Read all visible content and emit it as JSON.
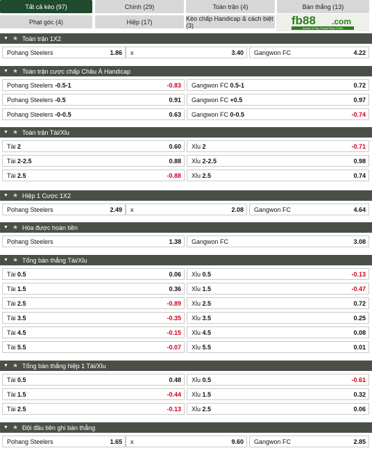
{
  "tabs": [
    {
      "label": "Tất cả kèo (97)",
      "active": true
    },
    {
      "label": "Chính (29)",
      "active": false
    },
    {
      "label": "Toàn trận (4)",
      "active": false
    },
    {
      "label": "Bàn thắng (13)",
      "active": false
    },
    {
      "label": "Phạt góc (4)",
      "active": false
    },
    {
      "label": "Hiệp (17)",
      "active": false
    },
    {
      "label": "Kèo chấp Handicap & cách biệt (3)",
      "active": false
    }
  ],
  "logo": {
    "brand": "fb88",
    "domain": ".com",
    "tagline": "Games To Play Trusted Place To Bet"
  },
  "sections": [
    {
      "title": "Toàn trận 1X2",
      "layout": "three",
      "rows": [
        [
          {
            "name": "Pohang Steelers",
            "line": "",
            "odd": "1.86"
          },
          {
            "name": "x",
            "line": "",
            "odd": "3.40"
          },
          {
            "name": "Gangwon FC",
            "line": "",
            "odd": "4.22"
          }
        ]
      ]
    },
    {
      "title": "Toàn trận cược chấp Châu Á Handicap",
      "layout": "two",
      "rows": [
        [
          {
            "name": "Pohang Steelers",
            "line": "-0.5-1",
            "odd": "-0.83"
          },
          {
            "name": "Gangwon FC",
            "line": "0.5-1",
            "odd": "0.72"
          }
        ],
        [
          {
            "name": "Pohang Steelers",
            "line": "-0.5",
            "odd": "0.91"
          },
          {
            "name": "Gangwon FC",
            "line": "+0.5",
            "odd": "0.97"
          }
        ],
        [
          {
            "name": "Pohang Steelers",
            "line": "-0-0.5",
            "odd": "0.63"
          },
          {
            "name": "Gangwon FC",
            "line": "0-0.5",
            "odd": "-0.74"
          }
        ]
      ]
    },
    {
      "title": "Toàn trận Tài/Xỉu",
      "layout": "two",
      "rows": [
        [
          {
            "name": "Tài",
            "line": "2",
            "odd": "0.60"
          },
          {
            "name": "Xỉu",
            "line": "2",
            "odd": "-0.71"
          }
        ],
        [
          {
            "name": "Tài",
            "line": "2-2.5",
            "odd": "0.88"
          },
          {
            "name": "Xỉu",
            "line": "2-2.5",
            "odd": "0.98"
          }
        ],
        [
          {
            "name": "Tài",
            "line": "2.5",
            "odd": "-0.88"
          },
          {
            "name": "Xỉu",
            "line": "2.5",
            "odd": "0.74"
          }
        ]
      ]
    },
    {
      "title": "Hiệp 1 Cược 1X2",
      "layout": "three",
      "rows": [
        [
          {
            "name": "Pohang Steelers",
            "line": "",
            "odd": "2.49"
          },
          {
            "name": "x",
            "line": "",
            "odd": "2.08"
          },
          {
            "name": "Gangwon FC",
            "line": "",
            "odd": "4.64"
          }
        ]
      ]
    },
    {
      "title": "Hòa được hoàn tiền",
      "layout": "two",
      "rows": [
        [
          {
            "name": "Pohang Steelers",
            "line": "",
            "odd": "1.38"
          },
          {
            "name": "Gangwon FC",
            "line": "",
            "odd": "3.08"
          }
        ]
      ]
    },
    {
      "title": "Tổng bàn thắng Tài/Xỉu",
      "layout": "two",
      "rows": [
        [
          {
            "name": "Tài",
            "line": "0.5",
            "odd": "0.06"
          },
          {
            "name": "Xỉu",
            "line": "0.5",
            "odd": "-0.13"
          }
        ],
        [
          {
            "name": "Tài",
            "line": "1.5",
            "odd": "0.36"
          },
          {
            "name": "Xỉu",
            "line": "1.5",
            "odd": "-0.47"
          }
        ],
        [
          {
            "name": "Tài",
            "line": "2.5",
            "odd": "-0.89"
          },
          {
            "name": "Xỉu",
            "line": "2.5",
            "odd": "0.72"
          }
        ],
        [
          {
            "name": "Tài",
            "line": "3.5",
            "odd": "-0.35"
          },
          {
            "name": "Xỉu",
            "line": "3.5",
            "odd": "0.25"
          }
        ],
        [
          {
            "name": "Tài",
            "line": "4.5",
            "odd": "-0.15"
          },
          {
            "name": "Xỉu",
            "line": "4.5",
            "odd": "0.08"
          }
        ],
        [
          {
            "name": "Tài",
            "line": "5.5",
            "odd": "-0.07"
          },
          {
            "name": "Xỉu",
            "line": "5.5",
            "odd": "0.01"
          }
        ]
      ]
    },
    {
      "title": "Tổng bàn thắng hiệp 1 Tài/Xỉu",
      "layout": "two",
      "rows": [
        [
          {
            "name": "Tài",
            "line": "0.5",
            "odd": "0.48"
          },
          {
            "name": "Xỉu",
            "line": "0.5",
            "odd": "-0.61"
          }
        ],
        [
          {
            "name": "Tài",
            "line": "1.5",
            "odd": "-0.44"
          },
          {
            "name": "Xỉu",
            "line": "1.5",
            "odd": "0.32"
          }
        ],
        [
          {
            "name": "Tài",
            "line": "2.5",
            "odd": "-0.13"
          },
          {
            "name": "Xỉu",
            "line": "2.5",
            "odd": "0.06"
          }
        ]
      ]
    },
    {
      "title": "Đội đầu tiên ghi bàn thắng",
      "layout": "three",
      "rows": [
        [
          {
            "name": "Pohang Steelers",
            "line": "",
            "odd": "1.65"
          },
          {
            "name": "x",
            "line": "",
            "odd": "9.60"
          },
          {
            "name": "Gangwon FC",
            "line": "",
            "odd": "2.85"
          }
        ]
      ]
    }
  ]
}
